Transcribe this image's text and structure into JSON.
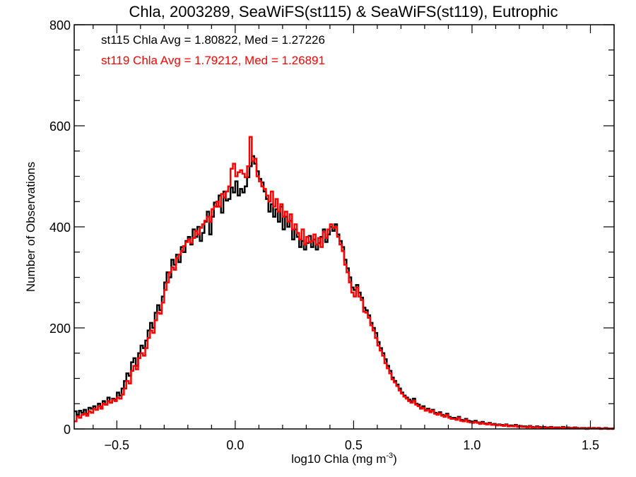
{
  "chart_data": {
    "type": "histogram",
    "title": "Chla, 2003289, SeaWiFS(st115) & SeaWiFS(st119), Eutrophic",
    "xlabel": "log10 Chla (mg m",
    "xlabel_superscript": "-3",
    "xlabel_suffix": ")",
    "ylabel": "Number of Observations",
    "xlim": [
      -0.68,
      1.6
    ],
    "ylim": [
      0,
      800
    ],
    "x_ticks": [
      -0.5,
      0.0,
      0.5,
      1.0,
      1.5
    ],
    "x_tick_labels": [
      "−0.5",
      "0.0",
      "0.5",
      "1.0",
      "1.5"
    ],
    "x_minor_step": 0.1,
    "y_ticks": [
      0,
      200,
      400,
      600,
      800
    ],
    "y_tick_labels": [
      "0",
      "200",
      "400",
      "600",
      "800"
    ],
    "y_minor_step": 50,
    "grid": false,
    "bin_start": -0.68,
    "bin_width": 0.01,
    "annotations": [
      {
        "text": "st115 Chla Avg = 1.80822, Med = 1.27226",
        "color": "#000000"
      },
      {
        "text": "st119 Chla Avg = 1.79212, Med = 1.26891",
        "color": "#ff0000"
      }
    ],
    "series": [
      {
        "name": "st115",
        "color": "#000000",
        "values": [
          35,
          28,
          36,
          32,
          38,
          30,
          42,
          40,
          45,
          38,
          50,
          44,
          55,
          48,
          62,
          52,
          60,
          58,
          72,
          66,
          80,
          95,
          110,
          105,
          132,
          140,
          125,
          150,
          165,
          160,
          175,
          195,
          210,
          200,
          230,
          245,
          235,
          262,
          290,
          310,
          300,
          335,
          325,
          345,
          330,
          360,
          350,
          372,
          380,
          365,
          395,
          380,
          400,
          372,
          388,
          410,
          430,
          385,
          420,
          448,
          440,
          462,
          428,
          470,
          452,
          455,
          478,
          468,
          490,
          462,
          475,
          468,
          480,
          498,
          520,
          540,
          525,
          510,
          495,
          488,
          470,
          455,
          430,
          445,
          420,
          435,
          410,
          440,
          395,
          420,
          400,
          412,
          375,
          395,
          380,
          360,
          372,
          355,
          368,
          382,
          360,
          375,
          355,
          368,
          380,
          395,
          370,
          385,
          400,
          392,
          405,
          385,
          372,
          360,
          335,
          318,
          300,
          280,
          275,
          285,
          270,
          260,
          240,
          235,
          225,
          210,
          200,
          190,
          172,
          160,
          150,
          138,
          125,
          115,
          102,
          95,
          88,
          80,
          72,
          66,
          62,
          58,
          55,
          60,
          50,
          48,
          42,
          45,
          38,
          40,
          35,
          38,
          32,
          30,
          33,
          28,
          26,
          30,
          24,
          22,
          22,
          20,
          24,
          18,
          17,
          20,
          16,
          15,
          14,
          16,
          13,
          12,
          14,
          11,
          10,
          12,
          9,
          10,
          8,
          9,
          8,
          7,
          9,
          6,
          7,
          6,
          8,
          5,
          6,
          5,
          5,
          4,
          6,
          4,
          3,
          5,
          4,
          3,
          4,
          3,
          3,
          4,
          2,
          3,
          3,
          2,
          4,
          2,
          3,
          2,
          2,
          3,
          2,
          1,
          2,
          2,
          1,
          2,
          1,
          2,
          1,
          2,
          1,
          1,
          2,
          1,
          1,
          1
        ]
      },
      {
        "name": "st119",
        "color": "#ff0000",
        "values": [
          15,
          25,
          22,
          28,
          30,
          26,
          35,
          32,
          40,
          38,
          45,
          40,
          50,
          48,
          55,
          52,
          58,
          55,
          62,
          60,
          68,
          80,
          95,
          90,
          115,
          125,
          118,
          140,
          150,
          145,
          160,
          180,
          195,
          190,
          215,
          230,
          228,
          250,
          275,
          290,
          310,
          320,
          315,
          338,
          345,
          352,
          362,
          370,
          375,
          368,
          378,
          392,
          385,
          398,
          405,
          412,
          420,
          410,
          435,
          440,
          450,
          440,
          465,
          458,
          470,
          480,
          515,
          525,
          500,
          508,
          512,
          505,
          498,
          520,
          578,
          530,
          535,
          500,
          490,
          480,
          475,
          462,
          450,
          470,
          440,
          455,
          430,
          445,
          420,
          430,
          410,
          425,
          395,
          405,
          388,
          375,
          395,
          365,
          380,
          370,
          372,
          385,
          365,
          378,
          360,
          390,
          378,
          395,
          405,
          398,
          400,
          380,
          365,
          352,
          325,
          310,
          290,
          270,
          262,
          280,
          262,
          255,
          232,
          230,
          220,
          205,
          195,
          180,
          165,
          155,
          145,
          130,
          120,
          110,
          98,
          92,
          85,
          76,
          70,
          64,
          60,
          55,
          52,
          56,
          48,
          45,
          40,
          42,
          36,
          38,
          33,
          36,
          30,
          28,
          31,
          26,
          24,
          28,
          22,
          20,
          20,
          18,
          22,
          16,
          15,
          18,
          14,
          13,
          12,
          14,
          12,
          10,
          12,
          10,
          9,
          11,
          8,
          9,
          7,
          8,
          7,
          6,
          8,
          5,
          6,
          5,
          7,
          4,
          5,
          4,
          4,
          3,
          5,
          3,
          3,
          4,
          3,
          2,
          3,
          2,
          2,
          3,
          2,
          2,
          2,
          1,
          3,
          1,
          2,
          1,
          1,
          2,
          1,
          1,
          1,
          1,
          0,
          1,
          1,
          1,
          1,
          1,
          0,
          1,
          1,
          0,
          1,
          0
        ]
      }
    ]
  }
}
